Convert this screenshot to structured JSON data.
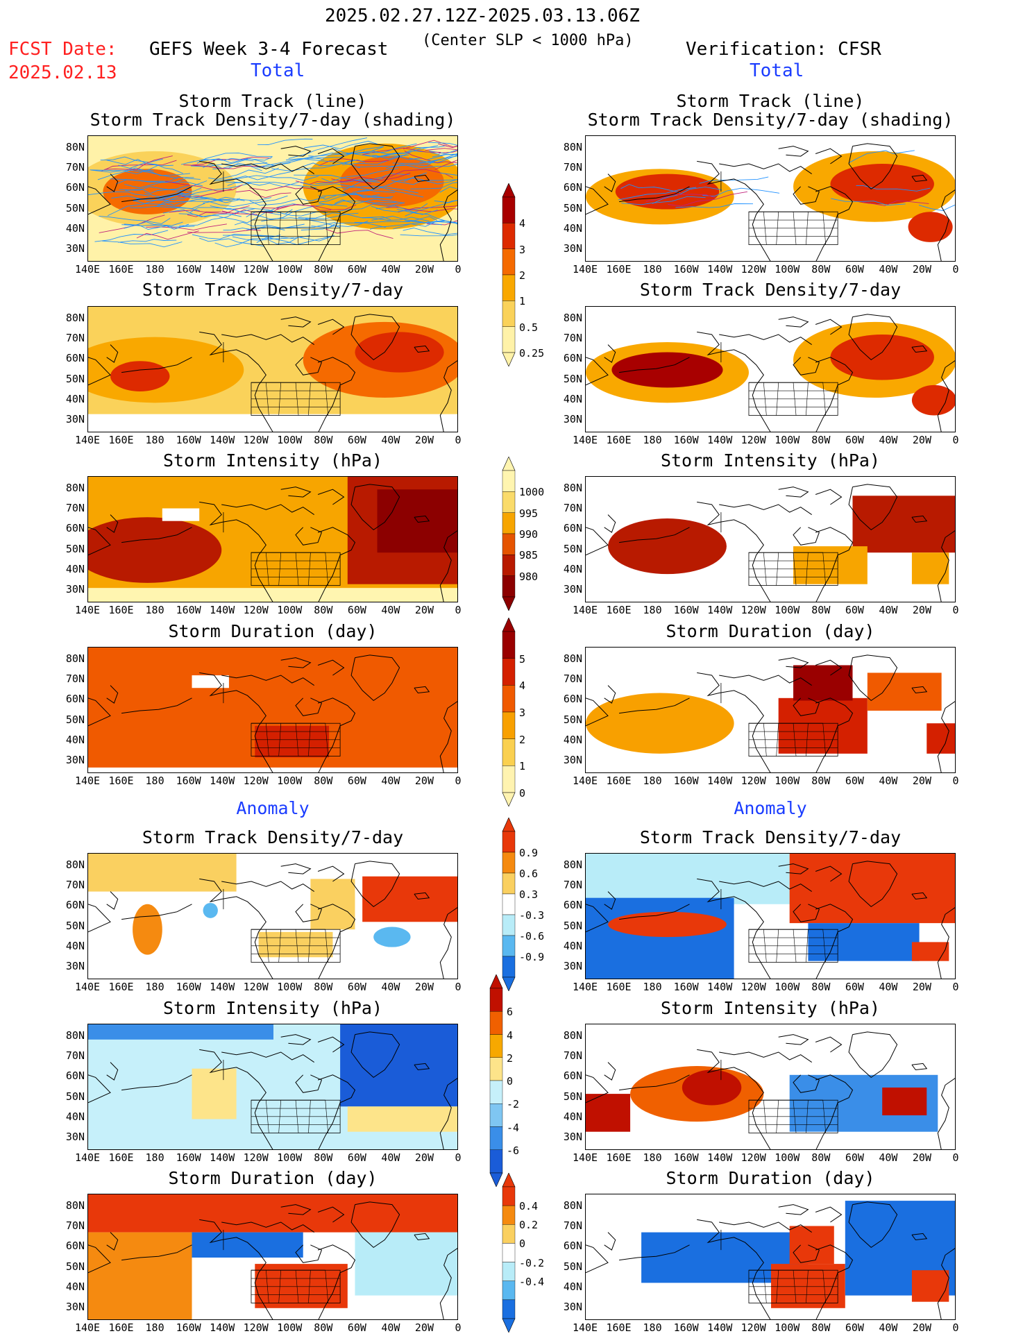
{
  "header": {
    "date_range": "2025.02.27.12Z-2025.03.13.06Z",
    "subtitle": "(Center SLP < 1000 hPa)",
    "fcst_label": "FCST Date:",
    "fcst_date": "2025.02.13",
    "left_title": "GEFS Week 3-4 Forecast",
    "right_title": "Verification: CFSR"
  },
  "sections": {
    "total": "Total",
    "anomaly": "Anomaly"
  },
  "panels": {
    "p1": {
      "title_line1": "Storm Track (line)",
      "title_line2": "Storm Track Density/7-day (shading)"
    },
    "p2": {
      "title": "Storm Track Density/7-day"
    },
    "p3": {
      "title": "Storm Intensity (hPa)"
    },
    "p4": {
      "title": "Storm Duration (day)"
    },
    "p5": {
      "title": "Storm Track Density/7-day"
    },
    "p6": {
      "title": "Storm Intensity (hPa)"
    },
    "p7": {
      "title": "Storm Duration (day)"
    }
  },
  "axes": {
    "lat": [
      "80N",
      "70N",
      "60N",
      "50N",
      "40N",
      "30N"
    ],
    "lon": [
      "140E",
      "160E",
      "180",
      "160W",
      "140W",
      "120W",
      "100W",
      "80W",
      "60W",
      "40W",
      "20W",
      "0"
    ]
  },
  "colorbars": {
    "density": {
      "labels": [
        "4",
        "3",
        "2",
        "1",
        "0.5",
        "0.25"
      ],
      "colors": [
        "#a80000",
        "#dd2a00",
        "#f56a00",
        "#f9a800",
        "#fad25a",
        "#fff2a8"
      ]
    },
    "intensity": {
      "labels": [
        "1000",
        "995",
        "990",
        "985",
        "980"
      ],
      "colors": [
        "#fff5b0",
        "#fadb6a",
        "#f7a500",
        "#e55400",
        "#b81a00",
        "#8c0000"
      ]
    },
    "duration": {
      "labels": [
        "5",
        "4",
        "3",
        "2",
        "1",
        "0"
      ],
      "colors": [
        "#9a0000",
        "#d42000",
        "#f05a00",
        "#f8a000",
        "#fad050",
        "#fff3b0"
      ]
    },
    "density_anom": {
      "labels": [
        "0.9",
        "0.6",
        "0.3",
        "-0.3",
        "-0.6",
        "-0.9"
      ],
      "colors": [
        "#e8380a",
        "#f58a10",
        "#fad060",
        "#ffffff",
        "#b8ecf8",
        "#5ab8f0",
        "#1a6fe0"
      ]
    },
    "intensity_anom": {
      "labels": [
        "6",
        "4",
        "2",
        "0",
        "-2",
        "-4",
        "-6"
      ],
      "colors": [
        "#c01000",
        "#f06000",
        "#f7a800",
        "#fde48a",
        "#c6f0fa",
        "#7fc6f2",
        "#3a8ee8",
        "#1a5cd8"
      ]
    },
    "duration_anom": {
      "labels": [
        "0.4",
        "0.2",
        "0",
        "-0.2",
        "-0.4"
      ],
      "colors": [
        "#e8380a",
        "#f58a10",
        "#fad060",
        "#ffffff",
        "#b8ecf8",
        "#5ab8f0",
        "#1a6fe0"
      ]
    }
  },
  "palette": {
    "deep_red": "#a80000",
    "red": "#dd2a00",
    "orange": "#f56a00",
    "amber": "#f9a800",
    "light_yellow": "#fad25a",
    "pale": "#fff2a8",
    "light_blue": "#b8ecf8",
    "mid_blue": "#5ab8f0",
    "blue": "#1a6fe0",
    "track_blue": "#1e90ff"
  }
}
